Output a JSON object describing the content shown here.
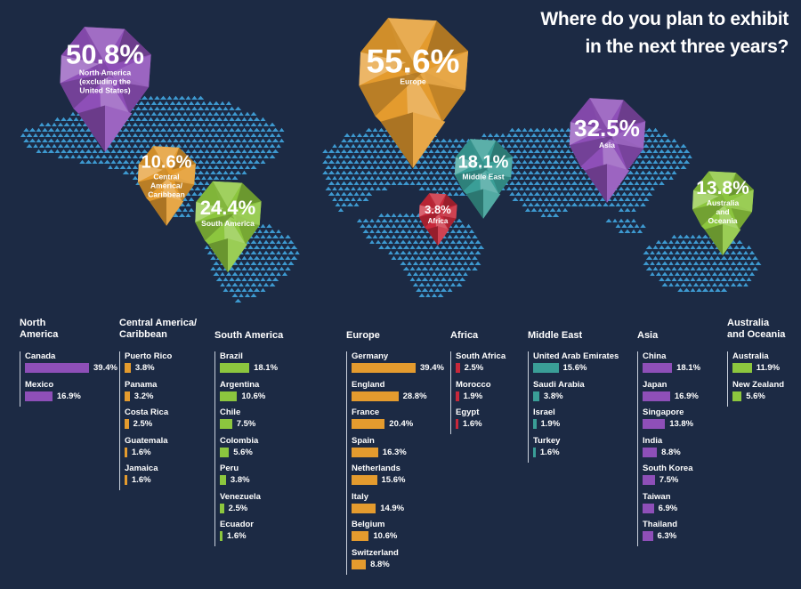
{
  "title": {
    "line1": "Where do you plan to exhibit",
    "line2": "in the next three years?"
  },
  "chart_data": {
    "type": "bar",
    "title": "Where do you plan to exhibit in the next three years?",
    "regions": [
      {
        "key": "na",
        "name": "North America",
        "name_lines": [
          "North",
          "America"
        ],
        "pin_label_lines": [
          "North America",
          "(excluding the",
          "United States)"
        ],
        "value": 50.8,
        "value_label": "50.8%",
        "color": "#8e4fb8",
        "countries": [
          {
            "name": "Canada",
            "value": 39.4,
            "label": "39.4%"
          },
          {
            "name": "Mexico",
            "value": 16.9,
            "label": "16.9%"
          }
        ]
      },
      {
        "key": "ca",
        "name": "Central America/ Caribbean",
        "name_lines": [
          "Central America/",
          "Caribbean"
        ],
        "pin_label_lines": [
          "Central",
          "America/",
          "Caribbean"
        ],
        "value": 10.6,
        "value_label": "10.6%",
        "color": "#e49b2e",
        "countries": [
          {
            "name": "Puerto Rico",
            "value": 3.8,
            "label": "3.8%"
          },
          {
            "name": "Panama",
            "value": 3.2,
            "label": "3.2%"
          },
          {
            "name": "Costa Rica",
            "value": 2.5,
            "label": "2.5%"
          },
          {
            "name": "Guatemala",
            "value": 1.6,
            "label": "1.6%"
          },
          {
            "name": "Jamaica",
            "value": 1.6,
            "label": "1.6%"
          }
        ]
      },
      {
        "key": "sa",
        "name": "South America",
        "name_lines": [
          "South America"
        ],
        "pin_label_lines": [
          "South America"
        ],
        "value": 24.4,
        "value_label": "24.4%",
        "color": "#8cc63e",
        "countries": [
          {
            "name": "Brazil",
            "value": 18.1,
            "label": "18.1%"
          },
          {
            "name": "Argentina",
            "value": 10.6,
            "label": "10.6%"
          },
          {
            "name": "Chile",
            "value": 7.5,
            "label": "7.5%"
          },
          {
            "name": "Colombia",
            "value": 5.6,
            "label": "5.6%"
          },
          {
            "name": "Peru",
            "value": 3.8,
            "label": "3.8%"
          },
          {
            "name": "Venezuela",
            "value": 2.5,
            "label": "2.5%"
          },
          {
            "name": "Ecuador",
            "value": 1.6,
            "label": "1.6%"
          }
        ]
      },
      {
        "key": "eu",
        "name": "Europe",
        "name_lines": [
          "Europe"
        ],
        "pin_label_lines": [
          "Europe"
        ],
        "value": 55.6,
        "value_label": "55.6%",
        "color": "#e49b2e",
        "countries": [
          {
            "name": "Germany",
            "value": 39.4,
            "label": "39.4%"
          },
          {
            "name": "England",
            "value": 28.8,
            "label": "28.8%"
          },
          {
            "name": "France",
            "value": 20.4,
            "label": "20.4%"
          },
          {
            "name": "Spain",
            "value": 16.3,
            "label": "16.3%"
          },
          {
            "name": "Netherlands",
            "value": 15.6,
            "label": "15.6%"
          },
          {
            "name": "Italy",
            "value": 14.9,
            "label": "14.9%"
          },
          {
            "name": "Belgium",
            "value": 10.6,
            "label": "10.6%"
          },
          {
            "name": "Switzerland",
            "value": 8.8,
            "label": "8.8%"
          }
        ]
      },
      {
        "key": "af",
        "name": "Africa",
        "name_lines": [
          "Africa"
        ],
        "pin_label_lines": [
          "Africa"
        ],
        "value": 3.8,
        "value_label": "3.8%",
        "color": "#c8283a",
        "countries": [
          {
            "name": "South Africa",
            "value": 2.5,
            "label": "2.5%"
          },
          {
            "name": "Morocco",
            "value": 1.9,
            "label": "1.9%"
          },
          {
            "name": "Egypt",
            "value": 1.6,
            "label": "1.6%"
          }
        ]
      },
      {
        "key": "me",
        "name": "Middle East",
        "name_lines": [
          "Middle East"
        ],
        "pin_label_lines": [
          "Middle East"
        ],
        "value": 18.1,
        "value_label": "18.1%",
        "color": "#3a9e97",
        "countries": [
          {
            "name": "United Arab Emirates",
            "value": 15.6,
            "label": "15.6%"
          },
          {
            "name": "Saudi Arabia",
            "value": 3.8,
            "label": "3.8%"
          },
          {
            "name": "Israel",
            "value": 1.9,
            "label": "1.9%"
          },
          {
            "name": "Turkey",
            "value": 1.6,
            "label": "1.6%"
          }
        ]
      },
      {
        "key": "as",
        "name": "Asia",
        "name_lines": [
          "Asia"
        ],
        "pin_label_lines": [
          "Asia"
        ],
        "value": 32.5,
        "value_label": "32.5%",
        "color": "#8e4fb8",
        "countries": [
          {
            "name": "China",
            "value": 18.1,
            "label": "18.1%"
          },
          {
            "name": "Japan",
            "value": 16.9,
            "label": "16.9%"
          },
          {
            "name": "Singapore",
            "value": 13.8,
            "label": "13.8%"
          },
          {
            "name": "India",
            "value": 8.8,
            "label": "8.8%"
          },
          {
            "name": "South Korea",
            "value": 7.5,
            "label": "7.5%"
          },
          {
            "name": "Taiwan",
            "value": 6.9,
            "label": "6.9%"
          },
          {
            "name": "Thailand",
            "value": 6.3,
            "label": "6.3%"
          }
        ]
      },
      {
        "key": "au",
        "name": "Australia and Oceania",
        "name_lines": [
          "Australia",
          "and Oceania"
        ],
        "pin_label_lines": [
          "Australia",
          "and",
          "Oceania"
        ],
        "value": 13.8,
        "value_label": "13.8%",
        "color": "#8cc63e",
        "countries": [
          {
            "name": "Australia",
            "value": 11.9,
            "label": "11.9%"
          },
          {
            "name": "New Zealand",
            "value": 5.6,
            "label": "5.6%"
          }
        ]
      }
    ]
  },
  "colors": {
    "background": "#1c2a44",
    "map_triangles": "#3f9fd8",
    "text": "#ffffff"
  }
}
